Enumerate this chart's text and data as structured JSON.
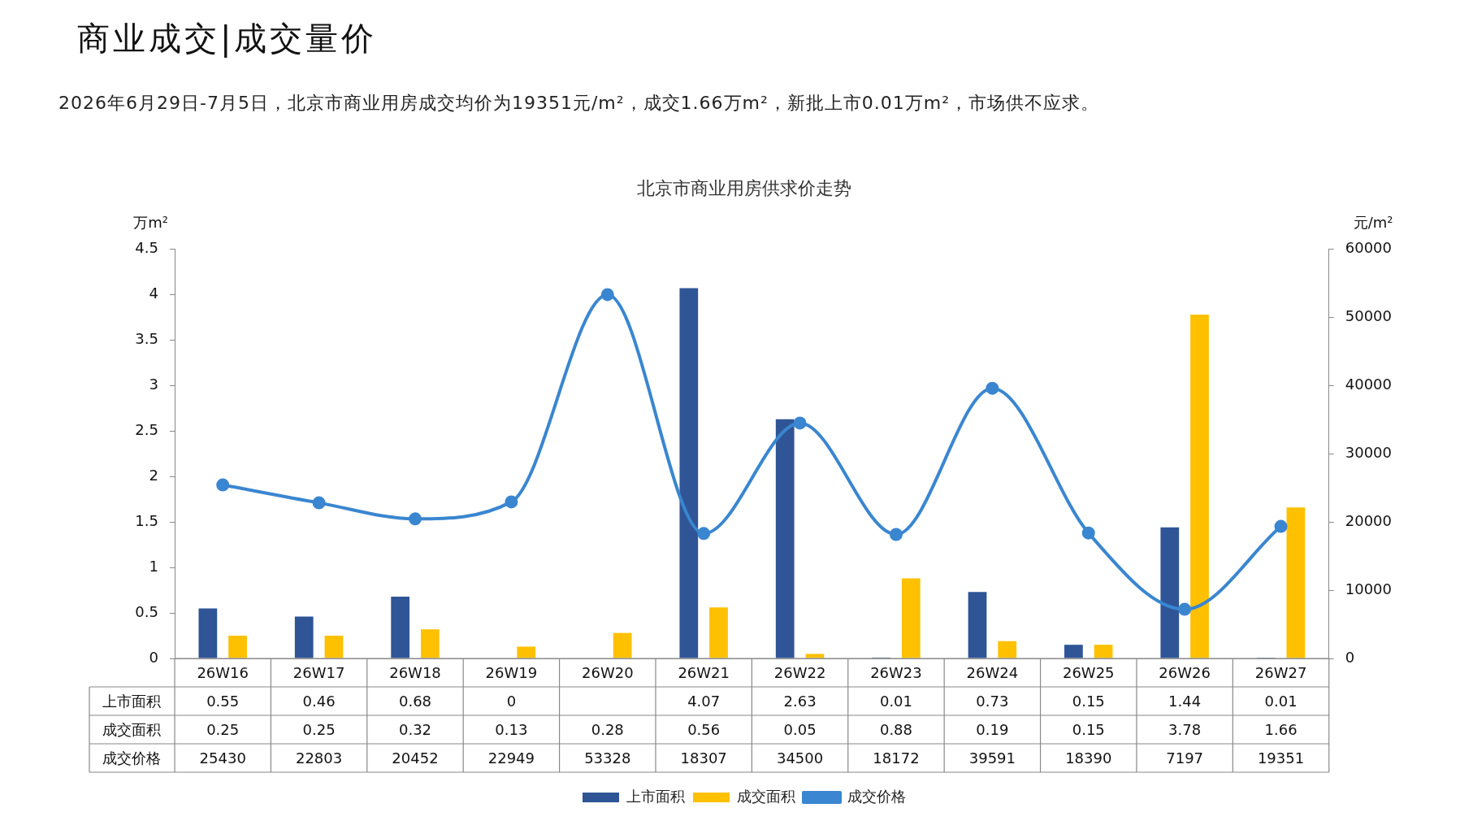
{
  "chart_data": {
    "type": "bar",
    "title": "北京市商业用房供求价走势",
    "subtitle": "2026年6月29日-7月5日，北京市商业用房成交均价为19351元/m²，成交1.66万m²，新批上市0.01万m²，市场供不应求。",
    "annotations": [
      "商业成交|成交量价"
    ],
    "categories": [
      "26W16",
      "26W17",
      "26W18",
      "26W19",
      "26W20",
      "26W21",
      "26W22",
      "26W23",
      "26W24",
      "26W25",
      "26W26",
      "26W27"
    ],
    "series": [
      {
        "name": "上市面积",
        "color": "#2f5597",
        "values": [
          0.55,
          0.46,
          0.68,
          0,
          null,
          4.07,
          2.63,
          0.01,
          0.73,
          0.15,
          1.44,
          0.01
        ]
      },
      {
        "name": "成交面积",
        "color": "#ffc000",
        "values": [
          0.25,
          0.25,
          0.32,
          0.13,
          0.28,
          0.56,
          0.05,
          0.88,
          0.19,
          0.15,
          3.78,
          1.66
        ]
      },
      {
        "name": "成交价格",
        "type": "line",
        "axis": "y2",
        "color": "#3a86d0",
        "marker": "circle",
        "values": [
          25430,
          22803,
          20452,
          22949,
          53328,
          18307,
          34500,
          18172,
          39591,
          18390,
          7197,
          19351
        ]
      }
    ],
    "ylabel": "万m²",
    "y2label": "元/m²",
    "ylim": [
      0,
      4.5
    ],
    "yticks": [
      0,
      0.5,
      1,
      1.5,
      2,
      2.5,
      3,
      3.5,
      4,
      4.5
    ],
    "y2lim": [
      0,
      60000
    ],
    "y2ticks": [
      0,
      10000,
      20000,
      30000,
      40000,
      50000,
      60000
    ],
    "grid": false,
    "legend": "bottom",
    "data_labels": true
  }
}
